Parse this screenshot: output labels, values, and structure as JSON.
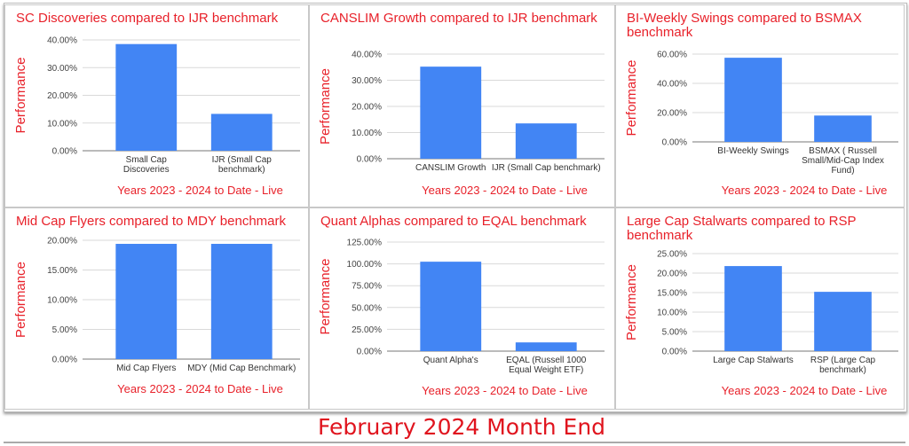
{
  "caption": "February 2024 Month End",
  "colors": {
    "bar": "#4285f4",
    "title": "#e8212a",
    "grid": "#d9d9d9",
    "axis_text": "#444444"
  },
  "chart_data": [
    {
      "type": "bar",
      "title": "SC Discoveries compared to IJR benchmark",
      "ylabel": "Performance",
      "xlabel": "Years 2023 - 2024 to Date - Live",
      "ylim": [
        0,
        40
      ],
      "yticks": [
        "0.00%",
        "10.00%",
        "20.00%",
        "30.00%",
        "40.00%"
      ],
      "categories": [
        "Small Cap Discoveries",
        "IJR (Small Cap benchmark)"
      ],
      "values": [
        38.5,
        13.3
      ],
      "grid": true
    },
    {
      "type": "bar",
      "title": "CANSLIM Growth compared to IJR benchmark",
      "ylabel": "Performance",
      "xlabel": "Years 2023 - 2024 to Date - Live",
      "ylim": [
        0,
        40
      ],
      "yticks": [
        "0.00%",
        "10.00%",
        "20.00%",
        "30.00%",
        "40.00%"
      ],
      "categories": [
        "CANSLIM Growth",
        "IJR (Small Cap benchmark)"
      ],
      "values": [
        35.2,
        13.5
      ],
      "grid": true
    },
    {
      "type": "bar",
      "title": "BI-Weekly Swings compared to BSMAX benchmark",
      "ylabel": "Performance",
      "xlabel": "Years 2023 - 2024 to Date - Live",
      "ylim": [
        0,
        60
      ],
      "yticks": [
        "0.00%",
        "20.00%",
        "40.00%",
        "60.00%"
      ],
      "categories": [
        "BI-Weekly Swings",
        "BSMAX ( Russell Small/Mid-Cap Index Fund)"
      ],
      "values": [
        57.5,
        18.0
      ],
      "grid": true
    },
    {
      "type": "bar",
      "title": "Mid Cap Flyers compared to MDY benchmark",
      "ylabel": "Performance",
      "xlabel": "Years 2023 - 2024 to Date - Live",
      "ylim": [
        0,
        20
      ],
      "yticks": [
        "0.00%",
        "5.00%",
        "10.00%",
        "15.00%",
        "20.00%"
      ],
      "categories": [
        "Mid Cap Flyers",
        "MDY (Mid Cap Benchmark)"
      ],
      "values": [
        19.4,
        19.4
      ],
      "grid": true
    },
    {
      "type": "bar",
      "title": "Quant Alphas compared to EQAL benchmark",
      "ylabel": "Performance",
      "xlabel": "Years 2023 - 2024 to Date - Live",
      "ylim": [
        0,
        125
      ],
      "yticks": [
        "0.00%",
        "25.00%",
        "50.00%",
        "75.00%",
        "100.00%",
        "125.00%"
      ],
      "categories": [
        "Quant Alpha's",
        "EQAL (Russell 1000 Equal Weight ETF)"
      ],
      "values": [
        102.5,
        10.0
      ],
      "grid": true
    },
    {
      "type": "bar",
      "title": "Large Cap Stalwarts compared to RSP benchmark",
      "ylabel": "Performance",
      "xlabel": "Years 2023 - 2024 to Date - Live",
      "ylim": [
        0,
        25
      ],
      "yticks": [
        "0.00%",
        "5.00%",
        "10.00%",
        "15.00%",
        "20.00%",
        "25.00%"
      ],
      "categories": [
        "Large Cap Stalwarts",
        "RSP (Large Cap benchmark)"
      ],
      "values": [
        21.8,
        15.2
      ],
      "grid": true
    }
  ]
}
